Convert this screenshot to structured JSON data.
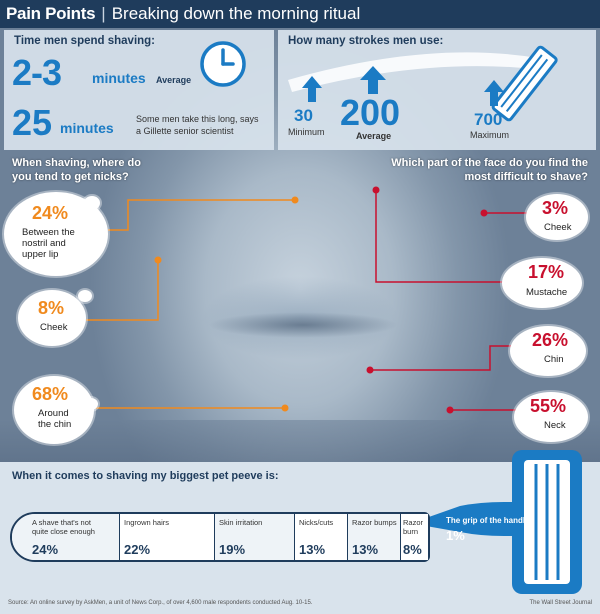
{
  "header": {
    "title": "Pain Points",
    "subtitle": "Breaking down the morning ritual"
  },
  "time": {
    "title": "Time men spend shaving:",
    "avg_value": "2-3",
    "avg_unit": "minutes",
    "avg_label": "Average",
    "max_value": "25",
    "max_unit": "minutes",
    "max_note_1": "Some men take this long, says",
    "max_note_2": "a Gillette senior scientist"
  },
  "strokes": {
    "title": "How many strokes men use:",
    "min_value": "30",
    "min_label": "Minimum",
    "avg_value": "200",
    "avg_label": "Average",
    "max_value": "700",
    "max_label": "Maximum"
  },
  "nicks": {
    "question_1": "When shaving, where do",
    "question_2": "you tend to get nicks?",
    "items": [
      {
        "pct": "24%",
        "label_1": "Between the",
        "label_2": "nostril and",
        "label_3": "upper lip",
        "value": 24
      },
      {
        "pct": "8%",
        "label_1": "Cheek",
        "value": 8
      },
      {
        "pct": "68%",
        "label_1": "Around",
        "label_2": "the chin",
        "value": 68
      }
    ]
  },
  "difficult": {
    "question_1": "Which part of the face do you find the",
    "question_2": "most difficult to shave?",
    "items": [
      {
        "pct": "3%",
        "label": "Cheek",
        "value": 3
      },
      {
        "pct": "17%",
        "label": "Mustache",
        "value": 17
      },
      {
        "pct": "26%",
        "label": "Chin",
        "value": 26
      },
      {
        "pct": "55%",
        "label": "Neck",
        "value": 55
      }
    ]
  },
  "pet_peeve": {
    "title": "When it comes to shaving my biggest pet peeve is:",
    "segments": [
      {
        "label_1": "A shave that's not",
        "label_2": "quite close enough",
        "pct": "24%",
        "value": 24
      },
      {
        "label_1": "Ingrown hairs",
        "pct": "22%",
        "value": 22
      },
      {
        "label_1": "Skin irritation",
        "pct": "19%",
        "value": 19
      },
      {
        "label_1": "Nicks/cuts",
        "pct": "13%",
        "value": 13
      },
      {
        "label_1": "Razor bumps",
        "pct": "13%",
        "value": 13
      },
      {
        "label_1": "Razor",
        "label_2": "burn",
        "pct": "8%",
        "value": 8
      }
    ],
    "grip_label": "The grip of the handle",
    "grip_pct": "1%"
  },
  "footer": {
    "source": "Source: An online survey by AskMen, a unit of News Corp., of over 4,600 male respondents conducted Aug. 10-15.",
    "credit": "The Wall Street Journal"
  },
  "colors": {
    "navy": "#1f3c5c",
    "blue": "#1b7bc4",
    "orange": "#f08a1e",
    "red": "#c8102e"
  }
}
